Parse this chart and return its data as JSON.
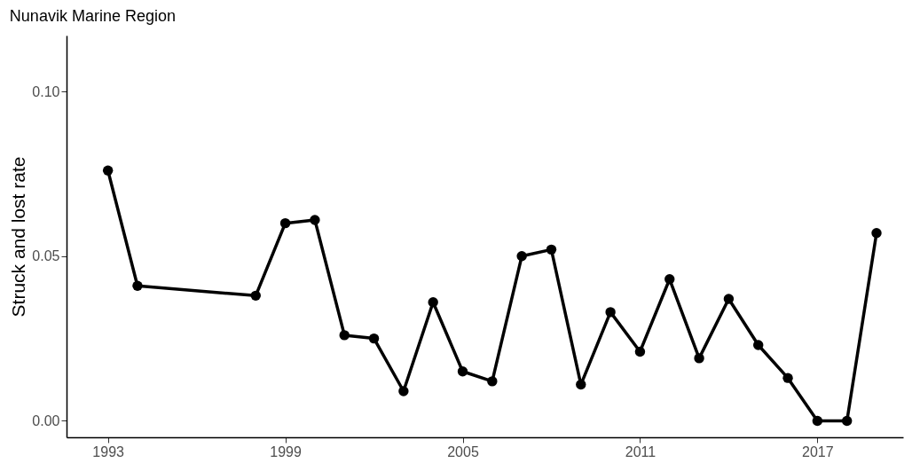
{
  "chart_data": {
    "type": "line",
    "title": "Nunavik Marine Region",
    "ylabel": "Struck and lost rate",
    "x": [
      1993,
      1994,
      1998,
      1999,
      2000,
      2001,
      2002,
      2003,
      2004,
      2005,
      2006,
      2007,
      2008,
      2009,
      2010,
      2011,
      2012,
      2013,
      2014,
      2015,
      2016,
      2017,
      2018,
      2019
    ],
    "series": [
      {
        "color": "#000000",
        "values": [
          0.076,
          0.041,
          0.038,
          0.06,
          0.061,
          0.026,
          0.025,
          0.009,
          0.036,
          0.015,
          0.012,
          0.05,
          0.052,
          0.011,
          0.033,
          0.021,
          0.043,
          0.019,
          0.037,
          0.023,
          0.013,
          0.0,
          0.0,
          0.057
        ]
      }
    ],
    "xlim": [
      1991.6,
      2019.9
    ],
    "xticks": [
      1993,
      1999,
      2005,
      2011,
      2017
    ],
    "ylim": [
      -0.005,
      0.117
    ],
    "yticks": [
      {
        "value": 0,
        "label": "0.00"
      },
      {
        "value": 0.05,
        "label": "0.05"
      },
      {
        "value": 0.1,
        "label": "0.10"
      }
    ],
    "grid": false,
    "marker": "circle",
    "line_style": "solid"
  }
}
